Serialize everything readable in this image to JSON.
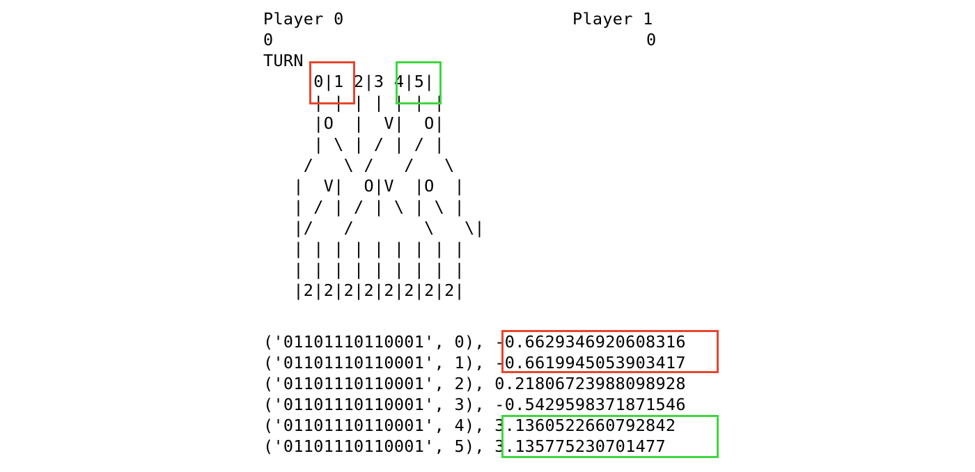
{
  "header": {
    "player0_label": "Player 0",
    "player1_label": "Player 1",
    "player0_score": "0",
    "player1_score": "0",
    "turn_label": "TURN"
  },
  "board": {
    "lines": [
      "     0|1 2|3 4|5|",
      "     | | | | | | |",
      "     |O  |  V|  O|",
      "     | \\ | / | / |",
      "    /   \\ /   /   \\",
      "   |  V|  O|V  |O  |",
      "   | / | / | \\ | \\ |",
      "   |/   /       \\   \\|",
      "   | | | | | | | | |",
      "   | | | | | | | | |",
      "   |2|2|2|2|2|2|2|2|"
    ]
  },
  "output": {
    "rows": [
      "('01101110110001', 0), -0.6629346920608316",
      "('01101110110001', 1), -0.6619945053903417",
      "('01101110110001', 2), 0.21806723988098928",
      "('01101110110001', 3), -0.5429598371871546",
      "('01101110110001', 4), 3.1360522660792842",
      "('01101110110001', 5), 3.135775230701477"
    ]
  },
  "highlights": {
    "red_color": "#e8452c",
    "green_color": "#3fd63f"
  }
}
